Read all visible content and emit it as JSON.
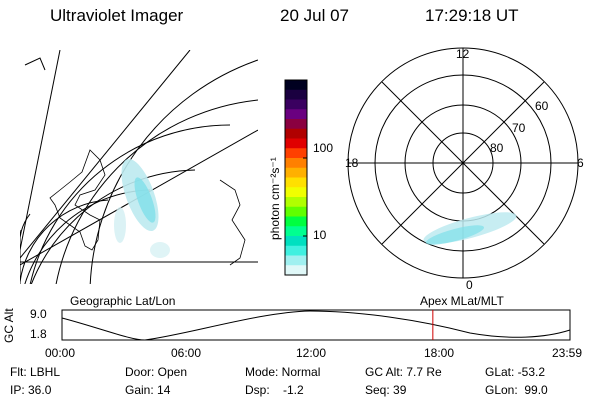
{
  "header": {
    "instrument": "Ultraviolet Imager",
    "date": "20 Jul 07",
    "time": "17:29:18 UT"
  },
  "colorbar": {
    "label": "photon cm⁻²s⁻¹",
    "ticks": [
      {
        "label": "100",
        "frac": 0.4
      },
      {
        "label": "10",
        "frac": 0.8
      }
    ],
    "colors": [
      "#000020",
      "#1a0040",
      "#3a0060",
      "#6a0080",
      "#8a0040",
      "#b00000",
      "#e00000",
      "#ff4000",
      "#ff8000",
      "#ffb000",
      "#ffe000",
      "#f0ff00",
      "#b0ff00",
      "#60ff00",
      "#00ff40",
      "#00ff90",
      "#00e0c0",
      "#40f0e0",
      "#a0f0f0",
      "#e0f8f8"
    ]
  },
  "polar": {
    "labels": {
      "top": "12",
      "bottom": "0",
      "left": "18",
      "right": "6"
    },
    "latitude_labels": [
      "60",
      "70",
      "80"
    ]
  },
  "projections": {
    "left": "Geographic Lat/Lon",
    "right": "Apex MLat/MLT"
  },
  "orbit": {
    "ylabel": "GC Alt",
    "yticks": [
      "9.0",
      "1.8"
    ],
    "xticks": [
      "00:00",
      "06:00",
      "12:00",
      "18:00",
      "23:59"
    ],
    "current_time_frac": 0.73
  },
  "info": {
    "filter": "Flt: LBHL",
    "ip": "IP: 36.0",
    "door": "Door: Open",
    "gain": "Gain: 14",
    "mode": "Mode: Normal",
    "dsp": "Dsp:    -1.2",
    "gcalt": "GC Alt: 7.7 Re",
    "seq": "Seq: 39",
    "glat": "GLat: -53.2",
    "glon": "GLon:  99.0"
  },
  "colors": {
    "aurora": "#bdeaf0",
    "aurora_bright": "#7fe0ea",
    "current_time": "#d00000"
  }
}
